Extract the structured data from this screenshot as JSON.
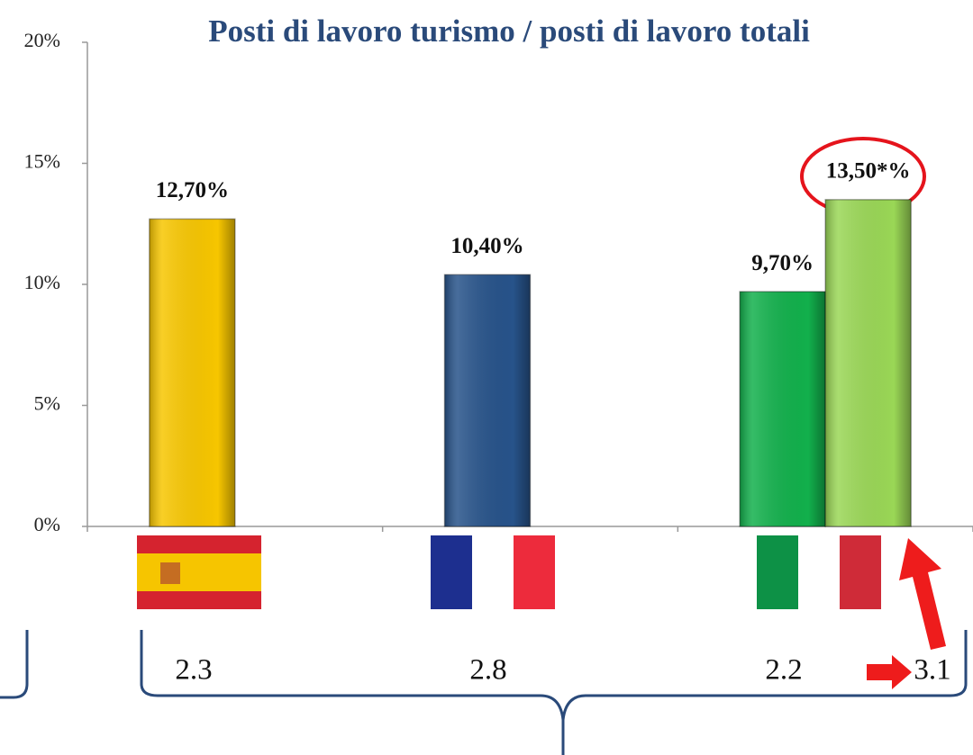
{
  "chart_data": {
    "type": "bar",
    "title": "Posti di lavoro turismo / posti di lavoro totali",
    "categories": [
      null,
      null,
      null
    ],
    "series": [
      {
        "colors": [
          "#f7c600",
          "#27538a",
          "#12b04c"
        ],
        "values": [
          12.7,
          10.4,
          9.7
        ],
        "value_labels": [
          "12,70%",
          "10,40%",
          "9,70%"
        ]
      },
      {
        "color": "#9ad756",
        "values": [
          null,
          null,
          13.5
        ],
        "value_labels": [
          null,
          null,
          "13,50*%"
        ]
      }
    ],
    "ylim": [
      0,
      20
    ],
    "yticks": [
      {
        "value": 0,
        "label": "0%"
      },
      {
        "value": 5,
        "label": "5%"
      },
      {
        "value": 10,
        "label": "10%"
      },
      {
        "value": 15,
        "label": "15%"
      },
      {
        "value": 20,
        "label": "20%"
      }
    ],
    "annotations": [
      "2.3",
      "2.8",
      "2.2",
      "3.1"
    ]
  }
}
